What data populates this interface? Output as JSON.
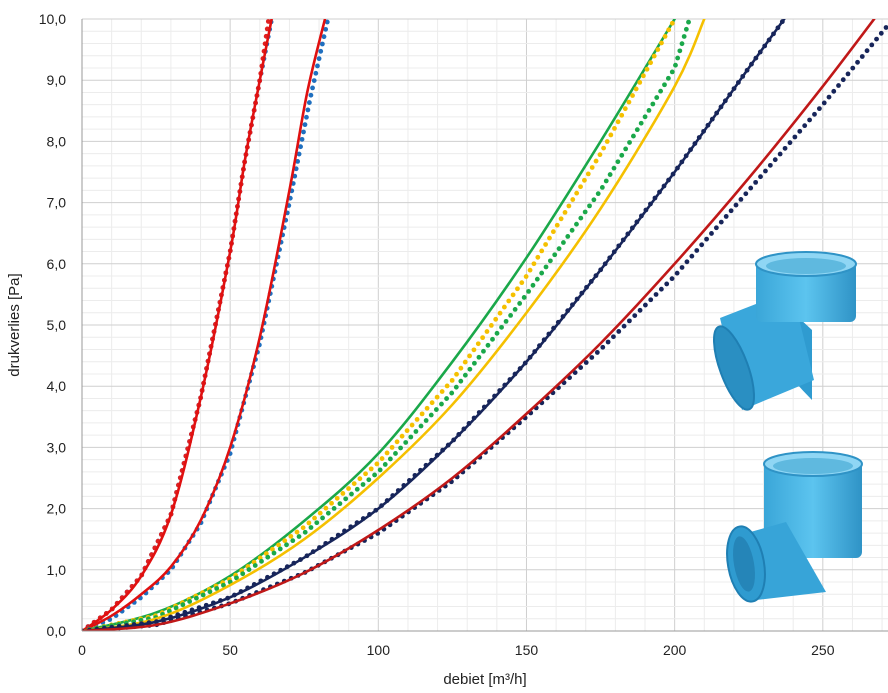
{
  "chart_data": {
    "type": "line",
    "xlabel": "debiet [m³/h]",
    "ylabel": "drukverlies [Pa]",
    "xlim": [
      0,
      272
    ],
    "ylim": [
      0,
      10
    ],
    "x_ticks": [
      "0",
      "50",
      "100",
      "150",
      "200",
      "250"
    ],
    "y_ticks": [
      "0,0",
      "1,0",
      "2,0",
      "3,0",
      "4,0",
      "5,0",
      "6,0",
      "7,0",
      "8,0",
      "9,0",
      "10,0"
    ],
    "grid": true,
    "series": [
      {
        "style": "dotted",
        "color": "#1f6fbf",
        "x": [
          0,
          10,
          20,
          30,
          40,
          50,
          55,
          60,
          64
        ],
        "y": [
          0,
          0.35,
          0.9,
          1.9,
          3.8,
          6.2,
          7.7,
          9.0,
          10.0
        ]
      },
      {
        "style": "dotted",
        "color": "#e02020",
        "x": [
          0,
          10,
          20,
          30,
          40,
          50,
          55,
          60,
          63
        ],
        "y": [
          0,
          0.35,
          0.9,
          1.9,
          3.8,
          6.2,
          7.7,
          9.0,
          10.0
        ]
      },
      {
        "style": "solid",
        "color": "#e01010",
        "x": [
          0,
          10,
          20,
          30,
          40,
          50,
          55,
          60,
          64
        ],
        "y": [
          0,
          0.35,
          0.9,
          1.9,
          3.8,
          6.2,
          7.7,
          9.0,
          10.0
        ]
      },
      {
        "style": "dotted",
        "color": "#1f6fbf",
        "x": [
          0,
          10,
          20,
          30,
          40,
          50,
          60,
          70,
          77,
          83
        ],
        "y": [
          0,
          0.2,
          0.55,
          1.0,
          1.75,
          2.9,
          4.7,
          7.0,
          8.7,
          10.0
        ]
      },
      {
        "style": "solid",
        "color": "#e01010",
        "x": [
          0,
          10,
          20,
          30,
          40,
          50,
          60,
          70,
          76,
          82
        ],
        "y": [
          0,
          0.25,
          0.6,
          1.05,
          1.8,
          3.0,
          4.8,
          7.2,
          8.8,
          10.0
        ]
      },
      {
        "style": "solid",
        "color": "#1aa84a",
        "x": [
          0,
          25,
          50,
          75,
          100,
          125,
          150,
          175,
          200
        ],
        "y": [
          0,
          0.3,
          0.9,
          1.8,
          2.9,
          4.4,
          6.1,
          8.0,
          10.0
        ]
      },
      {
        "style": "dotted",
        "color": "#f5c000",
        "x": [
          0,
          25,
          50,
          75,
          100,
          125,
          150,
          175,
          200
        ],
        "y": [
          0,
          0.25,
          0.85,
          1.7,
          2.75,
          4.1,
          5.8,
          7.8,
          10.0
        ]
      },
      {
        "style": "dotted",
        "color": "#1aa84a",
        "x": [
          0,
          25,
          50,
          75,
          100,
          125,
          150,
          175,
          200,
          205
        ],
        "y": [
          0,
          0.22,
          0.8,
          1.6,
          2.6,
          3.9,
          5.5,
          7.2,
          9.2,
          10.0
        ]
      },
      {
        "style": "solid",
        "color": "#f5c000",
        "x": [
          0,
          25,
          50,
          75,
          100,
          125,
          150,
          175,
          200,
          210
        ],
        "y": [
          0,
          0.2,
          0.75,
          1.5,
          2.5,
          3.7,
          5.2,
          6.9,
          8.9,
          10.0
        ]
      },
      {
        "style": "dotted",
        "color": "#17255a",
        "x": [
          0,
          25,
          50,
          75,
          100,
          125,
          150,
          175,
          200,
          225,
          237
        ],
        "y": [
          0,
          0.15,
          0.55,
          1.2,
          2.0,
          3.1,
          4.4,
          5.9,
          7.5,
          9.2,
          10.0
        ]
      },
      {
        "style": "solid",
        "color": "#17255a",
        "x": [
          0,
          25,
          50,
          75,
          100,
          125,
          150,
          175,
          200,
          225,
          237
        ],
        "y": [
          0,
          0.15,
          0.55,
          1.2,
          2.0,
          3.1,
          4.4,
          5.9,
          7.5,
          9.2,
          10.0
        ]
      },
      {
        "style": "dotted",
        "color": "#17255a",
        "x": [
          0,
          25,
          50,
          75,
          100,
          125,
          150,
          175,
          200,
          225,
          250,
          272
        ],
        "y": [
          0,
          0.1,
          0.45,
          0.95,
          1.6,
          2.45,
          3.5,
          4.6,
          5.8,
          7.2,
          8.6,
          9.9
        ]
      },
      {
        "style": "solid",
        "color": "#c01818",
        "x": [
          0,
          25,
          50,
          75,
          100,
          125,
          150,
          175,
          200,
          225,
          250,
          272
        ],
        "y": [
          0,
          0.1,
          0.45,
          0.95,
          1.65,
          2.5,
          3.55,
          4.7,
          6.0,
          7.4,
          8.9,
          10.3
        ]
      }
    ]
  }
}
